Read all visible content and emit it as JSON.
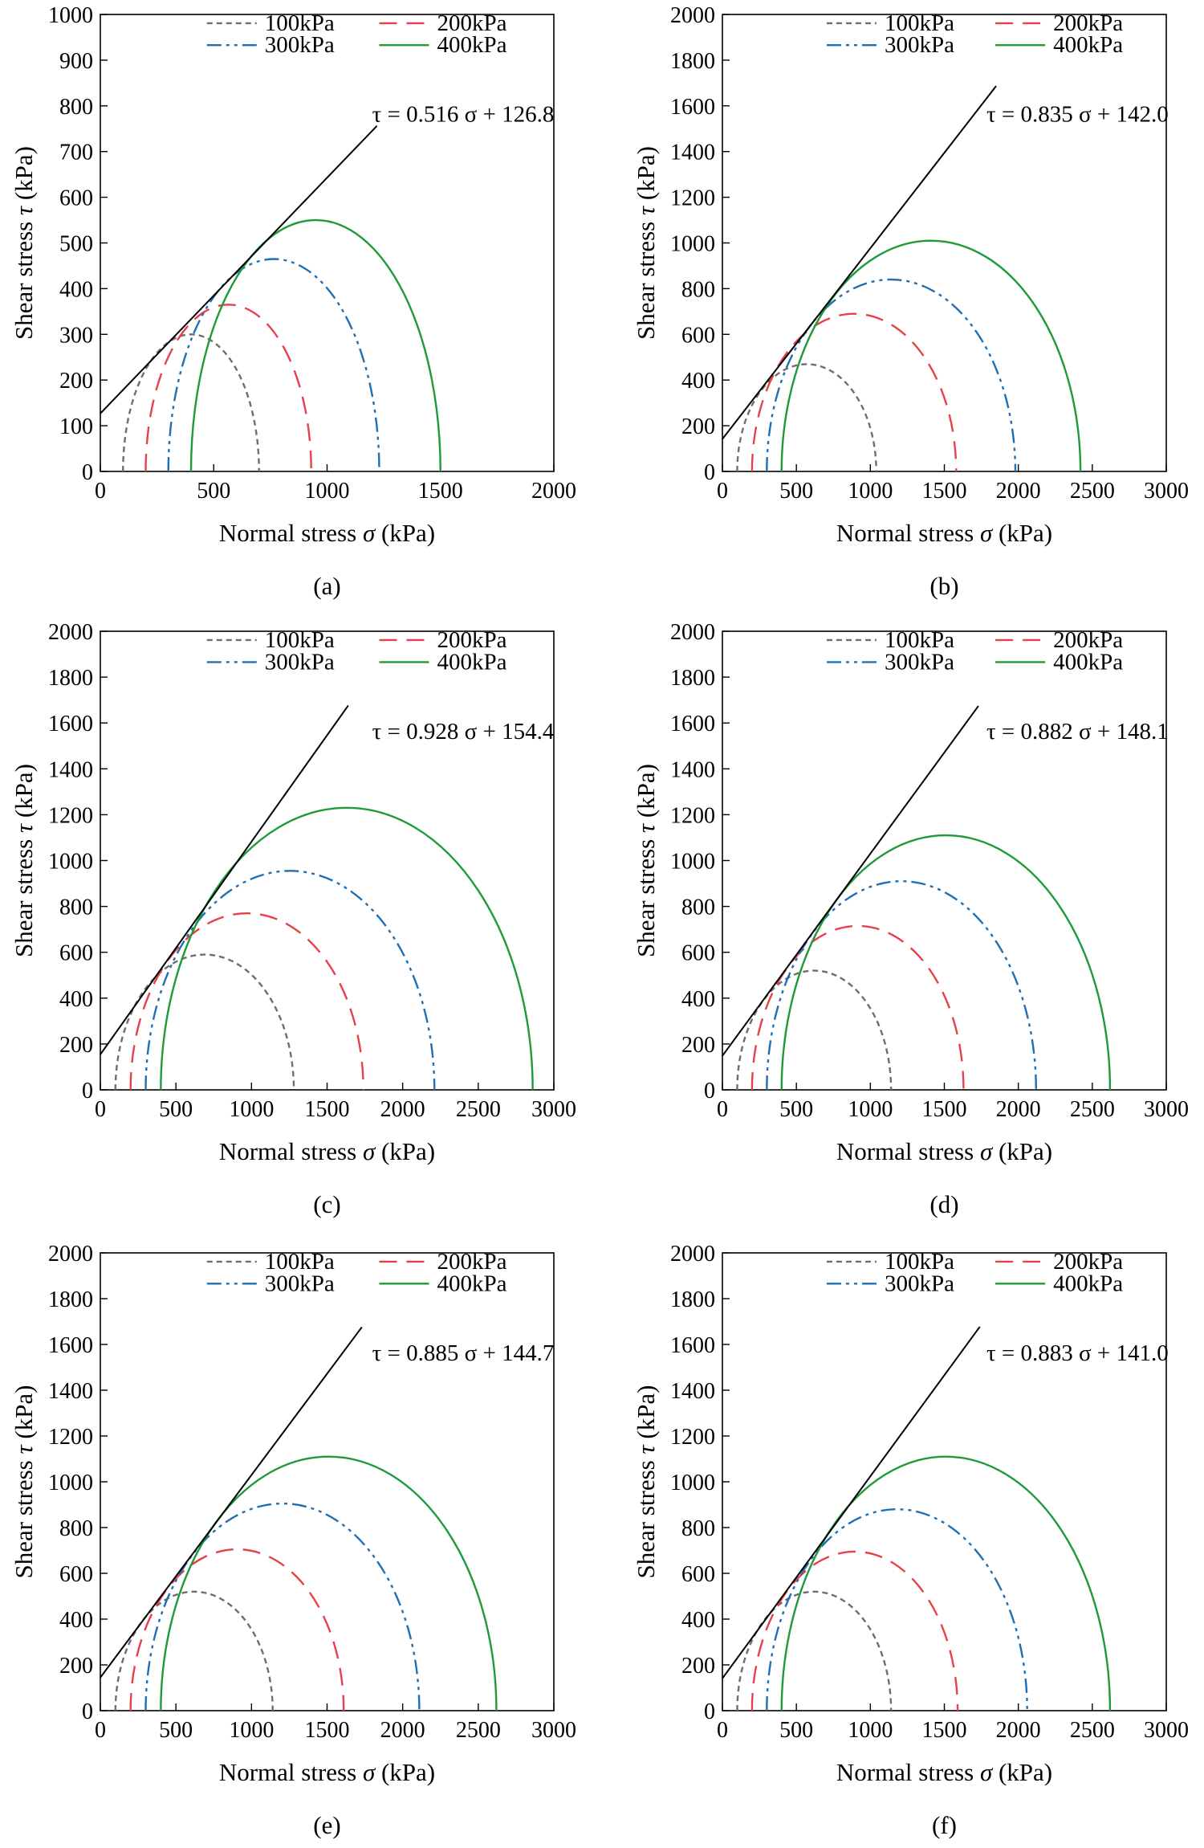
{
  "chart_data": [
    {
      "type": "line",
      "label": "(a)",
      "xlabel_text": "Normal stress",
      "xlabel_symbol": "σ",
      "xlabel_unit": "(kPa)",
      "ylabel_text": "Shear stress",
      "ylabel_symbol": "τ",
      "ylabel_unit": "(kPa)",
      "xlim": [
        0,
        2000
      ],
      "ylim": [
        0,
        1000
      ],
      "xticks": [
        0,
        500,
        1000,
        1500,
        2000
      ],
      "yticks": [
        0,
        100,
        200,
        300,
        400,
        500,
        600,
        700,
        800,
        900,
        1000
      ],
      "equation": "τ = 0.516 σ + 126.8",
      "envelope": {
        "slope": 0.516,
        "intercept": 126.8,
        "x_end": 1220
      },
      "series": [
        {
          "name": "100kPa",
          "sigma3": 100,
          "sigma1": 700
        },
        {
          "name": "200kPa",
          "sigma3": 200,
          "sigma1": 930
        },
        {
          "name": "300kPa",
          "sigma3": 300,
          "sigma1": 1230
        },
        {
          "name": "400kPa",
          "sigma3": 400,
          "sigma1": 1500
        }
      ]
    },
    {
      "type": "line",
      "label": "(b)",
      "xlabel_text": "Normal stress",
      "xlabel_symbol": "σ",
      "xlabel_unit": "(kPa)",
      "ylabel_text": "Shear stress",
      "ylabel_symbol": "τ",
      "ylabel_unit": "(kPa)",
      "xlim": [
        0,
        3000
      ],
      "ylim": [
        0,
        2000
      ],
      "xticks": [
        0,
        500,
        1000,
        1500,
        2000,
        2500,
        3000
      ],
      "yticks": [
        0,
        200,
        400,
        600,
        800,
        1000,
        1200,
        1400,
        1600,
        1800,
        2000
      ],
      "equation": "τ = 0.835 σ + 142.0",
      "envelope": {
        "slope": 0.835,
        "intercept": 142.0,
        "x_end": 1850
      },
      "series": [
        {
          "name": "100kPa",
          "sigma3": 100,
          "sigma1": 1040
        },
        {
          "name": "200kPa",
          "sigma3": 200,
          "sigma1": 1580
        },
        {
          "name": "300kPa",
          "sigma3": 300,
          "sigma1": 1980
        },
        {
          "name": "400kPa",
          "sigma3": 400,
          "sigma1": 2420
        }
      ]
    },
    {
      "type": "line",
      "label": "(c)",
      "xlabel_text": "Normal stress",
      "xlabel_symbol": "σ",
      "xlabel_unit": "(kPa)",
      "ylabel_text": "Shear stress",
      "ylabel_symbol": "τ",
      "ylabel_unit": "(kPa)",
      "xlim": [
        0,
        3000
      ],
      "ylim": [
        0,
        2000
      ],
      "xticks": [
        0,
        500,
        1000,
        1500,
        2000,
        2500,
        3000
      ],
      "yticks": [
        0,
        200,
        400,
        600,
        800,
        1000,
        1200,
        1400,
        1600,
        1800,
        2000
      ],
      "equation": "τ = 0.928 σ + 154.4",
      "envelope": {
        "slope": 0.928,
        "intercept": 154.4,
        "x_end": 1640
      },
      "series": [
        {
          "name": "100kPa",
          "sigma3": 100,
          "sigma1": 1280
        },
        {
          "name": "200kPa",
          "sigma3": 200,
          "sigma1": 1740
        },
        {
          "name": "300kPa",
          "sigma3": 300,
          "sigma1": 2210
        },
        {
          "name": "400kPa",
          "sigma3": 400,
          "sigma1": 2860
        }
      ]
    },
    {
      "type": "line",
      "label": "(d)",
      "xlabel_text": "Normal stress",
      "xlabel_symbol": "σ",
      "xlabel_unit": "(kPa)",
      "ylabel_text": "Shear stress",
      "ylabel_symbol": "τ",
      "ylabel_unit": "(kPa)",
      "xlim": [
        0,
        3000
      ],
      "ylim": [
        0,
        2000
      ],
      "xticks": [
        0,
        500,
        1000,
        1500,
        2000,
        2500,
        3000
      ],
      "yticks": [
        0,
        200,
        400,
        600,
        800,
        1000,
        1200,
        1400,
        1600,
        1800,
        2000
      ],
      "equation": "τ = 0.882 σ + 148.1",
      "envelope": {
        "slope": 0.882,
        "intercept": 148.1,
        "x_end": 1730
      },
      "series": [
        {
          "name": "100kPa",
          "sigma3": 100,
          "sigma1": 1140
        },
        {
          "name": "200kPa",
          "sigma3": 200,
          "sigma1": 1630
        },
        {
          "name": "300kPa",
          "sigma3": 300,
          "sigma1": 2120
        },
        {
          "name": "400kPa",
          "sigma3": 400,
          "sigma1": 2620
        }
      ]
    },
    {
      "type": "line",
      "label": "(e)",
      "xlabel_text": "Normal stress",
      "xlabel_symbol": "σ",
      "xlabel_unit": "(kPa)",
      "ylabel_text": "Shear stress",
      "ylabel_symbol": "τ",
      "ylabel_unit": "(kPa)",
      "xlim": [
        0,
        3000
      ],
      "ylim": [
        0,
        2000
      ],
      "xticks": [
        0,
        500,
        1000,
        1500,
        2000,
        2500,
        3000
      ],
      "yticks": [
        0,
        200,
        400,
        600,
        800,
        1000,
        1200,
        1400,
        1600,
        1800,
        2000
      ],
      "equation": "τ = 0.885 σ + 144.7",
      "envelope": {
        "slope": 0.885,
        "intercept": 144.7,
        "x_end": 1730
      },
      "series": [
        {
          "name": "100kPa",
          "sigma3": 100,
          "sigma1": 1140
        },
        {
          "name": "200kPa",
          "sigma3": 200,
          "sigma1": 1610
        },
        {
          "name": "300kPa",
          "sigma3": 300,
          "sigma1": 2110
        },
        {
          "name": "400kPa",
          "sigma3": 400,
          "sigma1": 2620
        }
      ]
    },
    {
      "type": "line",
      "label": "(f)",
      "xlabel_text": "Normal stress",
      "xlabel_symbol": "σ",
      "xlabel_unit": "(kPa)",
      "ylabel_text": "Shear stress",
      "ylabel_symbol": "τ",
      "ylabel_unit": "(kPa)",
      "xlim": [
        0,
        3000
      ],
      "ylim": [
        0,
        2000
      ],
      "xticks": [
        0,
        500,
        1000,
        1500,
        2000,
        2500,
        3000
      ],
      "yticks": [
        0,
        200,
        400,
        600,
        800,
        1000,
        1200,
        1400,
        1600,
        1800,
        2000
      ],
      "equation": "τ = 0.883 σ + 141.0",
      "envelope": {
        "slope": 0.883,
        "intercept": 141.0,
        "x_end": 1740
      },
      "series": [
        {
          "name": "100kPa",
          "sigma3": 100,
          "sigma1": 1140
        },
        {
          "name": "200kPa",
          "sigma3": 200,
          "sigma1": 1590
        },
        {
          "name": "300kPa",
          "sigma3": 300,
          "sigma1": 2060
        },
        {
          "name": "400kPa",
          "sigma3": 400,
          "sigma1": 2620
        }
      ]
    }
  ],
  "series_colors": {
    "100kPa": "#6e6e6e",
    "200kPa": "#e8404b",
    "300kPa": "#1f6fb4",
    "400kPa": "#1d9a3a",
    "envelope": "#000000"
  }
}
